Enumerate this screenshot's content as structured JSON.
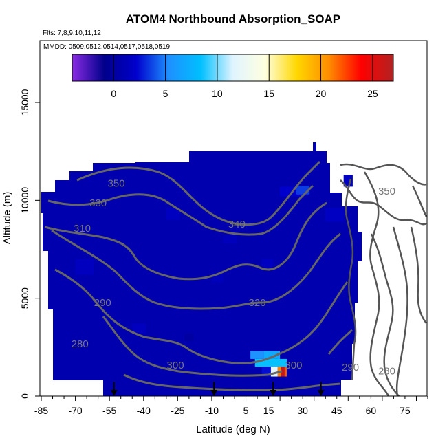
{
  "chart_data": {
    "type": "heatmap",
    "title": "ATOM4 Northbound Absorption_SOAP",
    "flights_note": "Flts: 7,8,9,10,11,12",
    "dates_note": "MMDD: 0509,0512,0514,0517,0518,0519",
    "xlabel": "Latitude (deg N)",
    "ylabel": "Altitude (m)",
    "xlim": [
      -85,
      85
    ],
    "ylim": [
      0,
      17500
    ],
    "x_ticks": [
      -85,
      -70,
      -55,
      -40,
      -25,
      -10,
      5,
      15,
      30,
      45,
      60,
      75
    ],
    "y_ticks": [
      0,
      5000,
      10000,
      15000
    ],
    "y_tick_labels": [
      "0",
      "5000",
      "10000",
      "15000"
    ],
    "colorbar": {
      "range": [
        -4,
        27
      ],
      "ticks": [
        0,
        5,
        10,
        15,
        20,
        25
      ],
      "colors": [
        "#8a2be2",
        "#00008b",
        "#0000cd",
        "#1e90ff",
        "#00bfff",
        "#e0f4ff",
        "#ffffe0",
        "#ffd700",
        "#ff8c00",
        "#ff0000",
        "#b22222"
      ]
    },
    "contour_labels": [
      {
        "text": "350",
        "lat": -52,
        "alt": 10700
      },
      {
        "text": "330",
        "lat": -60,
        "alt": 9700
      },
      {
        "text": "310",
        "lat": -67,
        "alt": 8400
      },
      {
        "text": "340",
        "lat": 1,
        "alt": 8600
      },
      {
        "text": "320",
        "lat": 10,
        "alt": 4600
      },
      {
        "text": "290",
        "lat": -58,
        "alt": 4600
      },
      {
        "text": "280",
        "lat": -68,
        "alt": 2500
      },
      {
        "text": "300",
        "lat": -26,
        "alt": 1400
      },
      {
        "text": "300",
        "lat": 26,
        "alt": 1400
      },
      {
        "text": "290",
        "lat": 51,
        "alt": 1300
      },
      {
        "text": "280",
        "lat": 67,
        "alt": 1100
      },
      {
        "text": "350",
        "lat": 67,
        "alt": 10300
      }
    ],
    "flight_arrows_lat": [
      -53,
      -9,
      17,
      38
    ],
    "hotspot": {
      "lat": [
        10,
        23
      ],
      "alt": [
        1000,
        2300
      ],
      "peak_value": 26
    }
  }
}
